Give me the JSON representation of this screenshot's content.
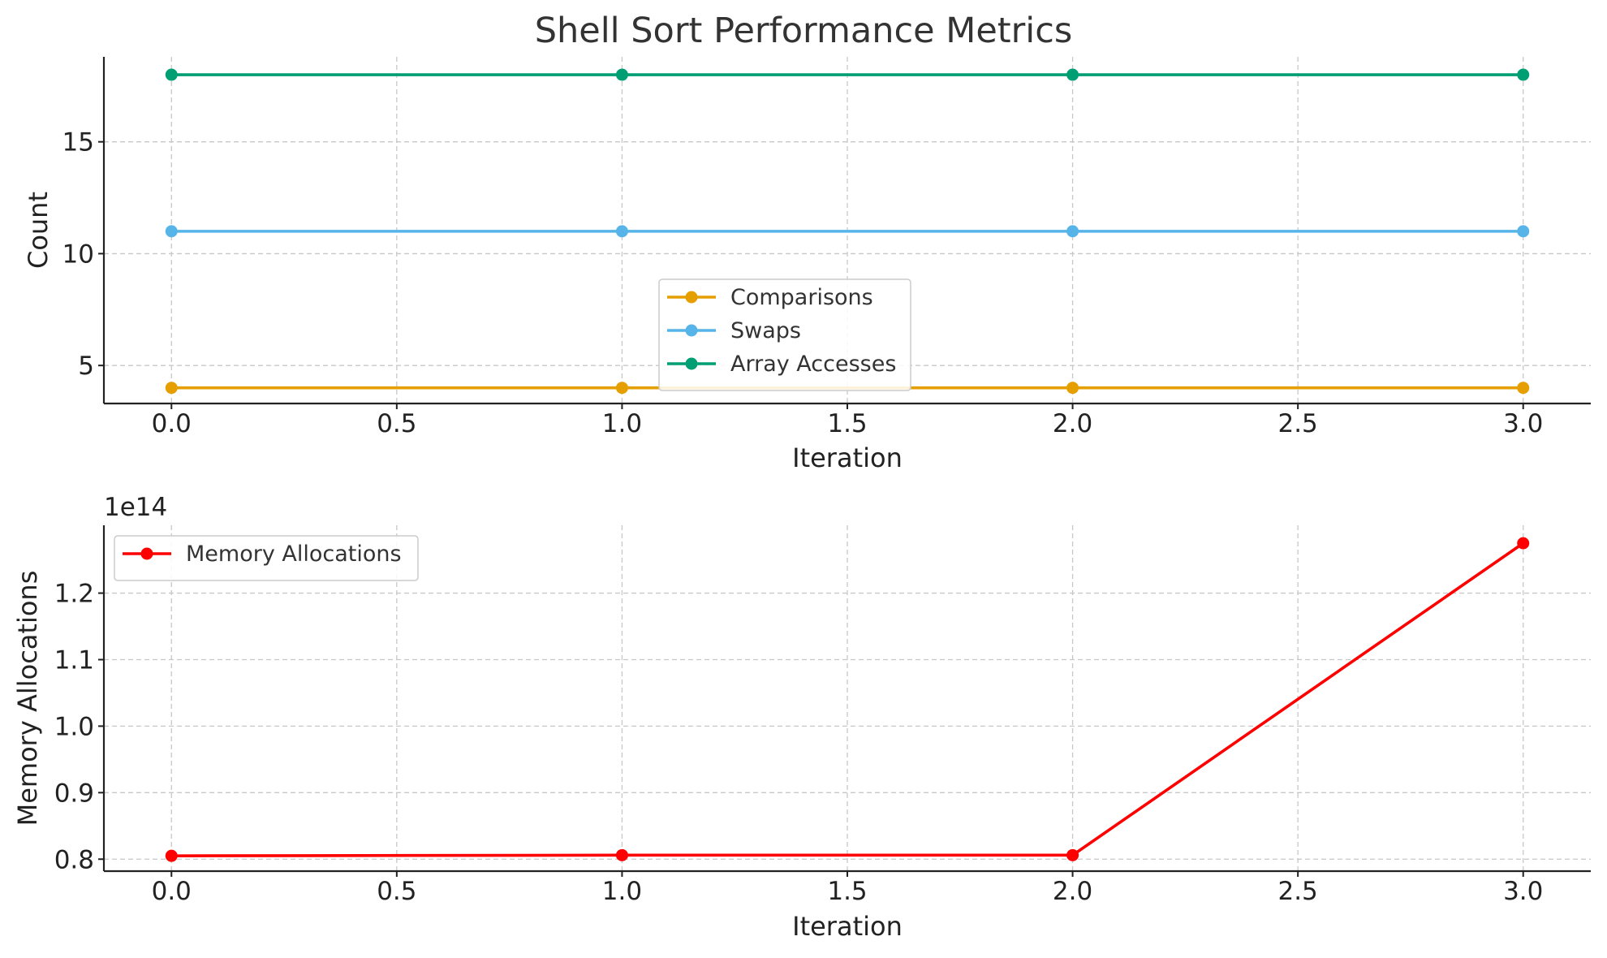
{
  "title": "Shell Sort Performance Metrics",
  "chart_data": [
    {
      "type": "line",
      "xlabel": "Iteration",
      "ylabel": "Count",
      "xlim": [
        -0.15,
        3.15
      ],
      "ylim": [
        3.3,
        18.8
      ],
      "xticks": [
        "0.0",
        "0.5",
        "1.0",
        "1.5",
        "2.0",
        "2.5",
        "3.0"
      ],
      "yticks": [
        "5",
        "10",
        "15"
      ],
      "grid": true,
      "legend_position": "lower center",
      "x": [
        0,
        1,
        2,
        3
      ],
      "series": [
        {
          "name": "Comparisons",
          "values": [
            4,
            4,
            4,
            4
          ],
          "color": "#E69F00"
        },
        {
          "name": "Swaps",
          "values": [
            11,
            11,
            11,
            11
          ],
          "color": "#56B4E9"
        },
        {
          "name": "Array Accesses",
          "values": [
            18,
            18,
            18,
            18
          ],
          "color": "#009E73"
        }
      ]
    },
    {
      "type": "line",
      "xlabel": "Iteration",
      "ylabel": "Memory Allocations",
      "offset_label": "1e14",
      "xlim": [
        -0.15,
        3.15
      ],
      "ylim": [
        0.782,
        1.302
      ],
      "xticks": [
        "0.0",
        "0.5",
        "1.0",
        "1.5",
        "2.0",
        "2.5",
        "3.0"
      ],
      "yticks": [
        "0.8",
        "0.9",
        "1.0",
        "1.1",
        "1.2"
      ],
      "grid": true,
      "legend_position": "upper left",
      "x": [
        0,
        1,
        2,
        3
      ],
      "series": [
        {
          "name": "Memory Allocations",
          "values": [
            0.805,
            0.806,
            0.806,
            1.275
          ],
          "color": "#FF0000"
        }
      ]
    }
  ]
}
